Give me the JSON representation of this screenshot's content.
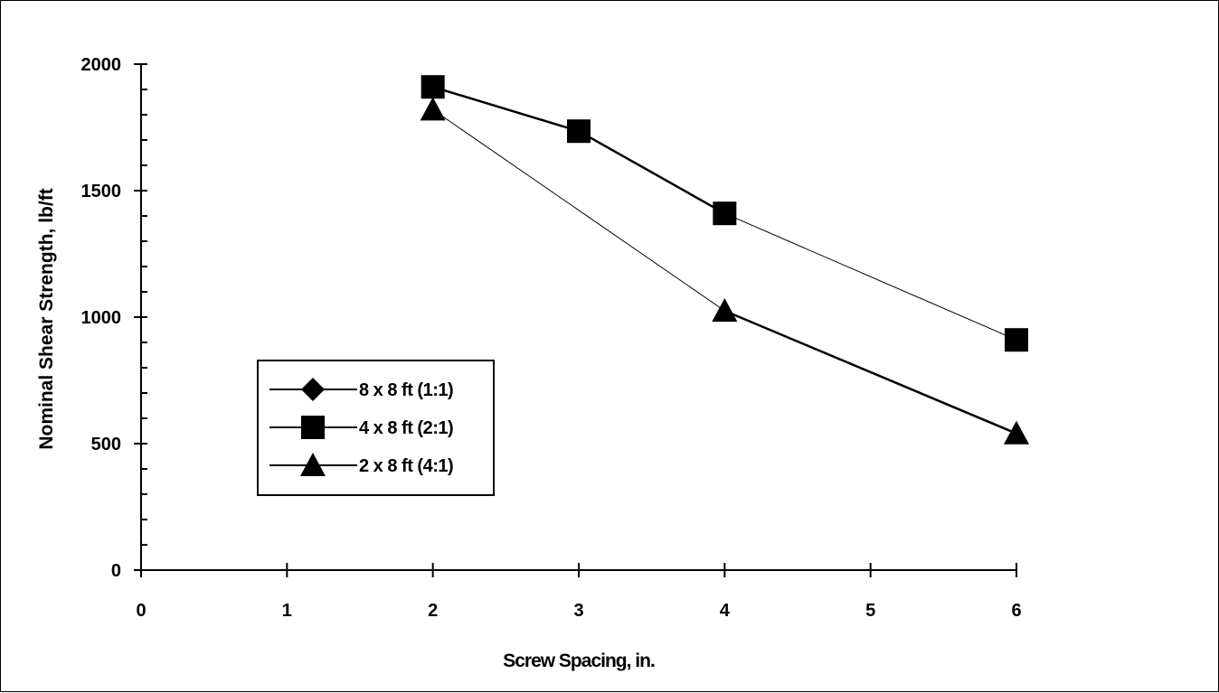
{
  "chart_data": {
    "type": "line",
    "title": "",
    "xlabel": "Screw Spacing, in.",
    "ylabel": "Nominal Shear Strength, lb/ft",
    "xlim": [
      0,
      6
    ],
    "ylim": [
      0,
      2000
    ],
    "xticks": [
      "0",
      "1",
      "2",
      "3",
      "4",
      "5",
      "6"
    ],
    "yticks": [
      "0",
      "500",
      "1000",
      "1500",
      "2000"
    ],
    "grid": false,
    "legend_position": "center-left",
    "series": [
      {
        "name": "8 x 8 ft (1:1)",
        "marker": "diamond",
        "x": [
          6
        ],
        "y": [
          910
        ]
      },
      {
        "name": "4 x 8 ft (2:1)",
        "marker": "square",
        "x": [
          2,
          3,
          4,
          6
        ],
        "y": [
          1910,
          1735,
          1410,
          910
        ]
      },
      {
        "name": "2 x 8 ft (4:1)",
        "marker": "triangle",
        "x": [
          2,
          4,
          6
        ],
        "y": [
          1820,
          1025,
          540
        ]
      }
    ],
    "colors": {
      "line": "#000000",
      "marker": "#000000",
      "background": "#ffffff"
    }
  }
}
